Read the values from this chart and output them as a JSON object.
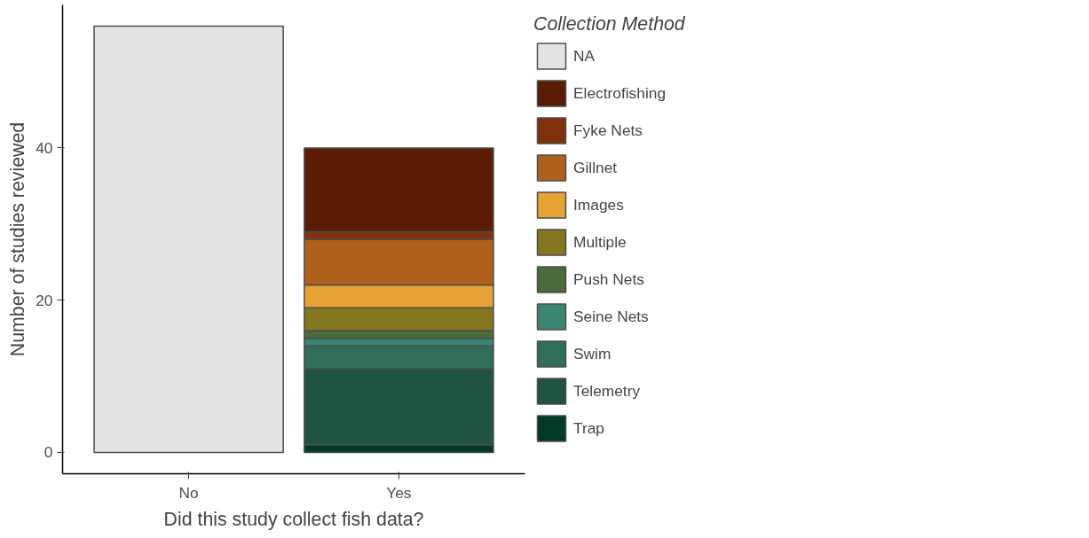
{
  "chart_data": {
    "type": "bar",
    "stacked": true,
    "xlabel": "Did this study collect fish data?",
    "ylabel": "Number of studies reviewed",
    "legend_title": "Collection Method",
    "categories": [
      "No",
      "Yes"
    ],
    "series": [
      {
        "name": "Trap",
        "color": "#023926",
        "values": [
          null,
          1
        ]
      },
      {
        "name": "Telemetry",
        "color": "#205342",
        "values": [
          null,
          10
        ]
      },
      {
        "name": "Swim",
        "color": "#316d5a",
        "values": [
          null,
          3
        ]
      },
      {
        "name": "Seine Nets",
        "color": "#3d8573",
        "values": [
          null,
          1
        ]
      },
      {
        "name": "Push Nets",
        "color": "#4c6b3a",
        "values": [
          null,
          1
        ]
      },
      {
        "name": "Multiple",
        "color": "#857620",
        "values": [
          null,
          3
        ]
      },
      {
        "name": "Images",
        "color": "#e5a335",
        "values": [
          null,
          3
        ]
      },
      {
        "name": "Gillnet",
        "color": "#ae601c",
        "values": [
          null,
          6
        ]
      },
      {
        "name": "Fyke Nets",
        "color": "#7f310c",
        "values": [
          null,
          1
        ]
      },
      {
        "name": "Electrofishing",
        "color": "#5a1c05",
        "values": [
          null,
          11
        ]
      },
      {
        "name": "NA",
        "color": "#e4e4e4",
        "values": [
          56,
          null
        ]
      }
    ],
    "ylim": [
      -2.8,
      58.8
    ],
    "yticks": [
      0,
      20,
      40
    ],
    "grid": false,
    "legend": "right"
  }
}
